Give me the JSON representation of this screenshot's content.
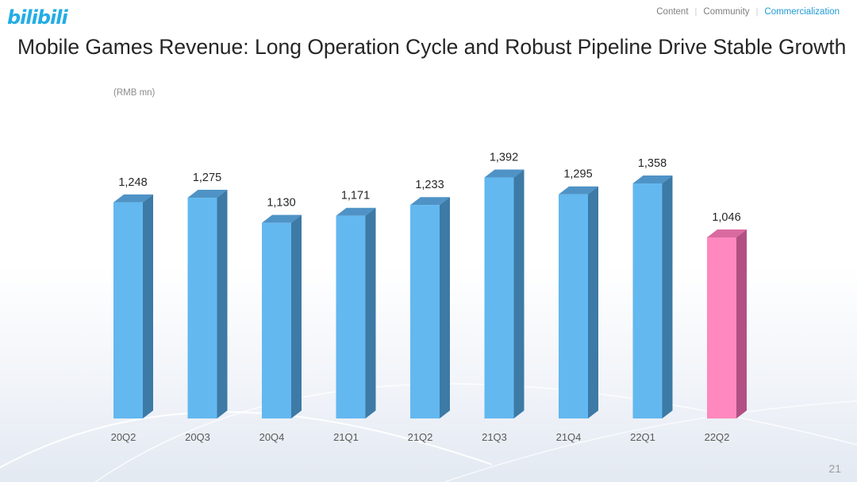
{
  "brand": {
    "logo_text": "bilibili",
    "logo_color": "#23ade5"
  },
  "nav": {
    "items": [
      {
        "label": "Content",
        "active": false
      },
      {
        "label": "Community",
        "active": false
      },
      {
        "label": "Commercialization",
        "active": true
      }
    ],
    "active_color": "#1f9ad6"
  },
  "page": {
    "title": "Mobile Games Revenue: Long Operation Cycle and Robust Pipeline Drive Stable Growth",
    "unit_label": "(RMB mn)",
    "page_number": "21"
  },
  "chart_data": {
    "type": "bar",
    "title": "",
    "xlabel": "",
    "ylabel": "",
    "unit": "(RMB mn)",
    "categories": [
      "20Q2",
      "20Q3",
      "20Q4",
      "21Q1",
      "21Q2",
      "21Q3",
      "21Q4",
      "22Q1",
      "22Q2"
    ],
    "values": [
      1248,
      1275,
      1130,
      1171,
      1233,
      1392,
      1295,
      1358,
      1046
    ],
    "value_labels": [
      "1,248",
      "1,275",
      "1,130",
      "1,171",
      "1,233",
      "1,392",
      "1,295",
      "1,358",
      "1,046"
    ],
    "highlight_index": 8,
    "colors": {
      "bar_front": "#63b8f0",
      "bar_side": "#3d7aa6",
      "bar_top": "#4f93c6",
      "highlight_front": "#ff88be",
      "highlight_side": "#b25084",
      "highlight_top": "#d96a9f"
    },
    "ylim": [
      0,
      1400
    ],
    "grid": false,
    "legend": "none"
  }
}
